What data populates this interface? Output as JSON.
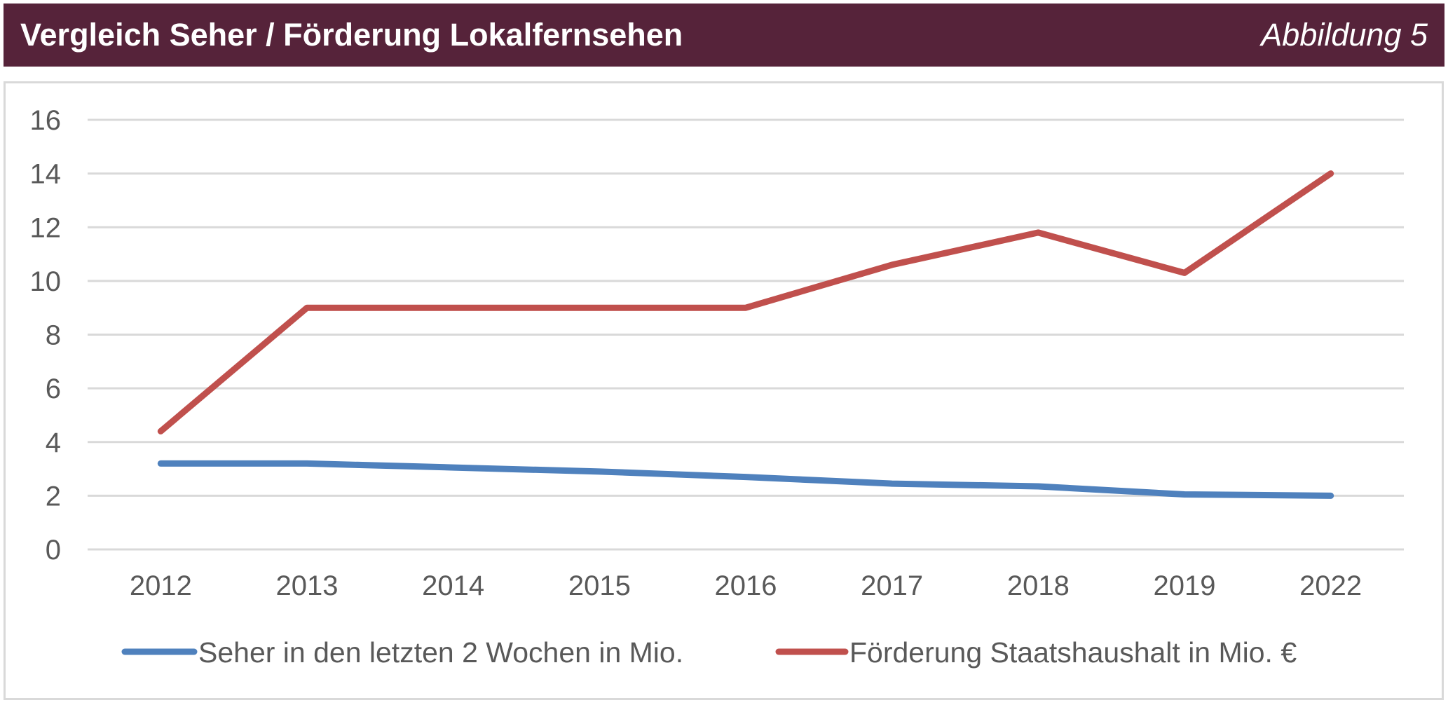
{
  "header": {
    "figure_label": "Abbildung 5",
    "background_color": "#56233A",
    "text_color": "#FFFFFF"
  },
  "chart_data": {
    "type": "line",
    "title": "Vergleich Seher / Förderung Lokalfernsehen",
    "xlabel": "",
    "ylabel": "",
    "categories": [
      "2012",
      "2013",
      "2014",
      "2015",
      "2016",
      "2017",
      "2018",
      "2019",
      "2022"
    ],
    "series": [
      {
        "name": "Seher in den letzten 2 Wochen in Mio.",
        "color": "#4F81BD",
        "values": [
          3.2,
          3.2,
          3.05,
          2.9,
          2.7,
          2.45,
          2.35,
          2.05,
          2.0
        ]
      },
      {
        "name": "Förderung Staatshaushalt in Mio. €",
        "color": "#C0504D",
        "values": [
          4.4,
          9.0,
          9.0,
          9.0,
          9.0,
          10.6,
          11.8,
          10.3,
          14.0
        ]
      }
    ],
    "y_ticks": [
      0,
      2,
      4,
      6,
      8,
      10,
      12,
      14,
      16
    ],
    "ylim": [
      0,
      16
    ],
    "grid": true,
    "gridline_color": "#D9D9D9",
    "tick_label_color": "#595959",
    "legend_position": "bottom"
  }
}
